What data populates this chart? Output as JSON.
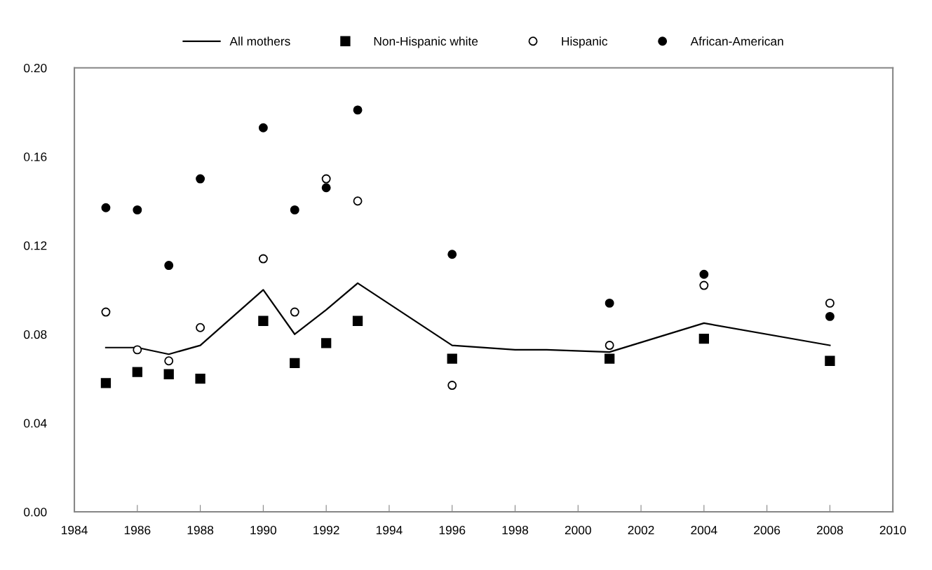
{
  "chart_data": {
    "type": "scatter",
    "series": [
      {
        "name": "All mothers",
        "type": "line",
        "color": "#000000",
        "marker": "none",
        "x": [
          1985,
          1986,
          1987,
          1988,
          1990,
          1991,
          1992,
          1993,
          1996,
          1998,
          1999,
          2001,
          2004,
          2008
        ],
        "values": [
          0.074,
          0.074,
          0.071,
          0.075,
          0.1,
          0.08,
          0.091,
          0.103,
          0.075,
          0.073,
          0.073,
          0.072,
          0.085,
          0.075
        ]
      },
      {
        "name": "Non-Hispanic white",
        "color": "#000000",
        "marker": "square",
        "x": [
          1985,
          1986,
          1987,
          1988,
          1990,
          1991,
          1992,
          1993,
          1996,
          2001,
          2004,
          2008
        ],
        "values": [
          0.058,
          0.063,
          0.062,
          0.06,
          0.086,
          0.067,
          0.076,
          0.086,
          0.069,
          0.069,
          0.078,
          0.068
        ]
      },
      {
        "name": "Hispanic",
        "color": "#ffffff",
        "marker": "circle",
        "x": [
          1985,
          1986,
          1987,
          1988,
          1990,
          1991,
          1992,
          1993,
          1996,
          2001,
          2004,
          2008
        ],
        "values": [
          0.09,
          0.073,
          0.068,
          0.083,
          0.114,
          0.09,
          0.15,
          0.14,
          0.057,
          0.075,
          0.102,
          0.094
        ]
      },
      {
        "name": "African-American",
        "color": "#000000",
        "marker": "circle",
        "x": [
          1985,
          1986,
          1987,
          1988,
          1990,
          1991,
          1992,
          1993,
          1996,
          2001,
          2004,
          2008
        ],
        "values": [
          0.137,
          0.136,
          0.111,
          0.15,
          0.173,
          0.136,
          0.146,
          0.181,
          0.116,
          0.094,
          0.107,
          0.088
        ]
      }
    ],
    "xlim": [
      1984,
      2010
    ],
    "xticks": [
      1984,
      1986,
      1988,
      1990,
      1992,
      1994,
      1996,
      1998,
      2000,
      2002,
      2004,
      2006,
      2008,
      2010
    ],
    "ylim": [
      0,
      0.2
    ],
    "yticks": [
      {
        "value": 0,
        "label": "0.00"
      },
      {
        "value": 0.04,
        "label": "0.04"
      },
      {
        "value": 0.08,
        "label": "0.08"
      },
      {
        "value": 0.12,
        "label": "0.12"
      },
      {
        "value": 0.16,
        "label": "0.16"
      },
      {
        "value": 0.2,
        "label": "0.20"
      }
    ],
    "grid": false,
    "legend": "top"
  }
}
